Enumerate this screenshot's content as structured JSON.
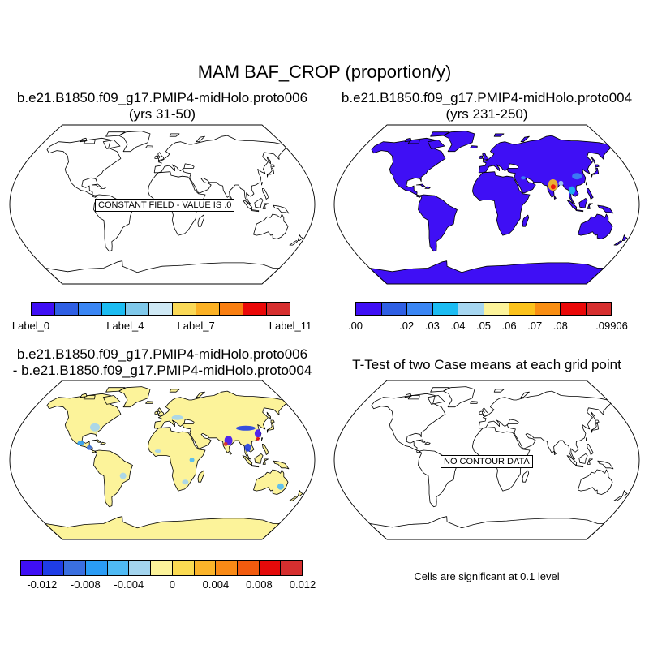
{
  "title": "MAM BAF_CROP (proportion/y)",
  "chart_data": [
    {
      "type": "heatmap",
      "panel": "top-left",
      "title_line1": "b.e21.B1850.f09_g17.PMIP4-midHolo.proto006",
      "title_line2": "(yrs 31-50)",
      "message": "CONSTANT FIELD - VALUE IS .0",
      "value": 0,
      "colorbar": {
        "colors": [
          "#3f0ff5",
          "#2f5fe4",
          "#3a86f4",
          "#1cbcf2",
          "#7fc8ea",
          "#cfe9f5",
          "#fad957",
          "#fbb124",
          "#f97f11",
          "#ea0808",
          "#d62f2f"
        ],
        "labels": [
          "Label_0",
          "Label_4",
          "Label_7",
          "Label_11"
        ],
        "label_index": [
          0,
          4,
          7,
          11
        ]
      }
    },
    {
      "type": "heatmap",
      "panel": "top-right",
      "title_line1": "b.e21.B1850.f09_g17.PMIP4-midHolo.proto004",
      "title_line2": "(yrs 231-250)",
      "hotspots": [
        {
          "region": "South Asia",
          "value": 0.07
        },
        {
          "region": "Southeast Asia",
          "value": 0.03
        },
        {
          "region": "East Asia",
          "value": 0.02
        }
      ],
      "colorbar": {
        "colors": [
          "#3f0ff5",
          "#2f5fe4",
          "#3a86f4",
          "#1cbcf2",
          "#a6d6f0",
          "#fcf39a",
          "#fbc21c",
          "#f98e12",
          "#ea0808",
          "#d62f2f"
        ],
        "labels": [
          ".00",
          ".02",
          ".03",
          ".04",
          ".05",
          ".06",
          ".07",
          ".08",
          ".09906"
        ],
        "label_index": [
          0,
          2,
          3,
          4,
          5,
          6,
          7,
          8,
          10
        ]
      }
    },
    {
      "type": "heatmap",
      "panel": "bottom-left",
      "title_line1": "b.e21.B1850.f09_g17.PMIP4-midHolo.proto006",
      "title_line2": "- b.e21.B1850.f09_g17.PMIP4-midHolo.proto004",
      "colorbar": {
        "colors": [
          "#3f0ff5",
          "#1f3de6",
          "#3a6fe0",
          "#2a9cf5",
          "#4fbaf4",
          "#a3d4ee",
          "#fcf39a",
          "#fbdb52",
          "#fbb42a",
          "#f98a16",
          "#f25b0e",
          "#e40a0a",
          "#d62f2f"
        ],
        "labels": [
          "-0.012",
          "-0.008",
          "-0.004",
          "0",
          "0.004",
          "0.008",
          "0.012"
        ],
        "label_index": [
          1,
          3,
          5,
          7,
          9,
          11,
          13
        ]
      }
    },
    {
      "type": "heatmap",
      "panel": "bottom-right",
      "title_line1": "T-Test of two Case means at each grid point",
      "message": "NO CONTOUR DATA",
      "footnote": "Cells are significant at 0.1 level"
    }
  ]
}
